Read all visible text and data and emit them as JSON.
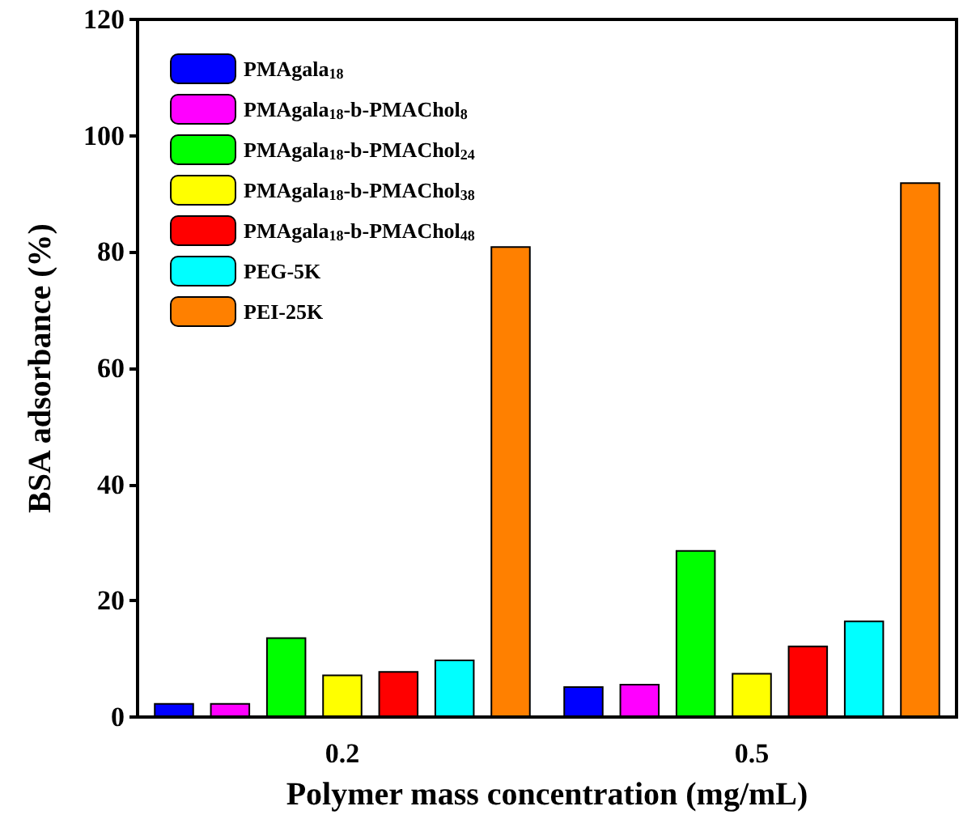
{
  "chart_data": {
    "type": "bar",
    "xlabel": "Polymer mass concentration (mg/mL)",
    "ylabel": "BSA adsorbance (%)",
    "categories": [
      "0.2",
      "0.5"
    ],
    "series": [
      {
        "name": "PMAgala$_{18}$",
        "color": "#0000ff",
        "values": [
          2.4,
          5.3
        ]
      },
      {
        "name": "PMAgala$_{18}$-b-PMAChol$_{8}$",
        "color": "#ff00ff",
        "values": [
          2.4,
          5.7
        ]
      },
      {
        "name": "PMAgala$_{18}$-b-PMAChol$_{24}$",
        "color": "#00ff00",
        "values": [
          13.7,
          28.7
        ]
      },
      {
        "name": "PMAgala$_{18}$-b-PMAChol$_{38}$",
        "color": "#ffff00",
        "values": [
          7.3,
          7.6
        ]
      },
      {
        "name": "PMAgala$_{18}$-b-PMAChol$_{48}$",
        "color": "#ff0000",
        "values": [
          7.9,
          12.3
        ]
      },
      {
        "name": "PEG-5K",
        "color": "#00ffff",
        "values": [
          9.9,
          16.6
        ]
      },
      {
        "name": "PEI-25K",
        "color": "#ff8000",
        "values": [
          81,
          92
        ]
      }
    ],
    "ylim": [
      0,
      120
    ],
    "yticks": [
      0,
      20,
      40,
      60,
      80,
      100,
      120
    ],
    "grid": false,
    "legend": "top left"
  }
}
